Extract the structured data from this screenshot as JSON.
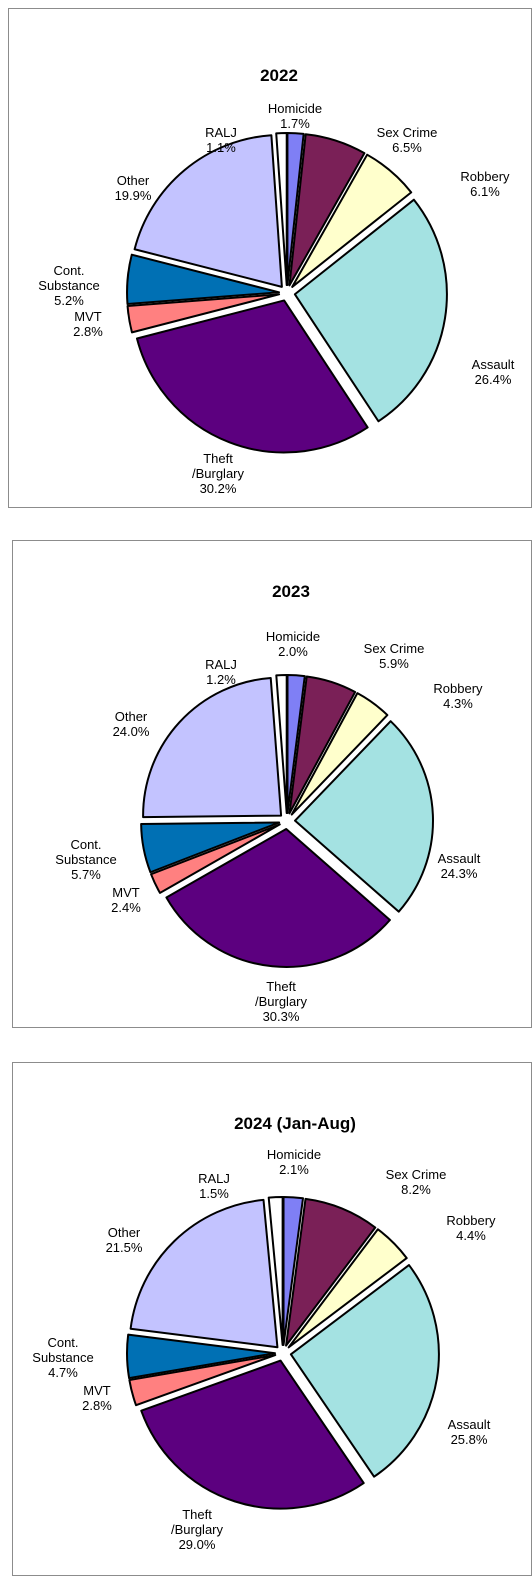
{
  "colors": {
    "Homicide": "#7f7ff5",
    "Sex Crime": "#7a2057",
    "Robbery": "#ffffcc",
    "Assault": "#a4e2e2",
    "Theft /Burglary": "#5c007f",
    "MVT": "#ff8080",
    "Cont. Substance": "#0070b4",
    "Other": "#c3c3ff",
    "RALJ": "#ffffff"
  },
  "chart_data": [
    {
      "type": "pie",
      "title": "2022",
      "slices": [
        {
          "name": "Homicide",
          "label": [
            "Homicide"
          ],
          "value": 1.7,
          "value_label": "1.7%"
        },
        {
          "name": "Sex Crime",
          "label": [
            "Sex Crime"
          ],
          "value": 6.5,
          "value_label": "6.5%"
        },
        {
          "name": "Robbery",
          "label": [
            "Robbery"
          ],
          "value": 6.1,
          "value_label": "6.1%"
        },
        {
          "name": "Assault",
          "label": [
            "Assault"
          ],
          "value": 26.4,
          "value_label": "26.4%"
        },
        {
          "name": "Theft /Burglary",
          "label": [
            "Theft",
            "/Burglary"
          ],
          "value": 30.2,
          "value_label": "30.2%"
        },
        {
          "name": "MVT",
          "label": [
            "MVT"
          ],
          "value": 2.8,
          "value_label": "2.8%"
        },
        {
          "name": "Cont. Substance",
          "label": [
            "Cont.",
            "Substance"
          ],
          "value": 5.2,
          "value_label": "5.2%"
        },
        {
          "name": "Other",
          "label": [
            "Other"
          ],
          "value": 19.9,
          "value_label": "19.9%"
        },
        {
          "name": "RALJ",
          "label": [
            "RALJ"
          ],
          "value": 1.1,
          "value_label": "1.1%"
        }
      ]
    },
    {
      "type": "pie",
      "title": "2023",
      "slices": [
        {
          "name": "Homicide",
          "label": [
            "Homicide"
          ],
          "value": 2.0,
          "value_label": "2.0%"
        },
        {
          "name": "Sex Crime",
          "label": [
            "Sex Crime"
          ],
          "value": 5.9,
          "value_label": "5.9%"
        },
        {
          "name": "Robbery",
          "label": [
            "Robbery"
          ],
          "value": 4.3,
          "value_label": "4.3%"
        },
        {
          "name": "Assault",
          "label": [
            "Assault"
          ],
          "value": 24.3,
          "value_label": "24.3%"
        },
        {
          "name": "Theft /Burglary",
          "label": [
            "Theft",
            "/Burglary"
          ],
          "value": 30.3,
          "value_label": "30.3%"
        },
        {
          "name": "MVT",
          "label": [
            "MVT"
          ],
          "value": 2.4,
          "value_label": "2.4%"
        },
        {
          "name": "Cont. Substance",
          "label": [
            "Cont.",
            "Substance"
          ],
          "value": 5.7,
          "value_label": "5.7%"
        },
        {
          "name": "Other",
          "label": [
            "Other"
          ],
          "value": 24.0,
          "value_label": "24.0%"
        },
        {
          "name": "RALJ",
          "label": [
            "RALJ"
          ],
          "value": 1.2,
          "value_label": "1.2%"
        }
      ]
    },
    {
      "type": "pie",
      "title": "2024 (Jan-Aug)",
      "slices": [
        {
          "name": "Homicide",
          "label": [
            "Homicide"
          ],
          "value": 2.1,
          "value_label": "2.1%"
        },
        {
          "name": "Sex Crime",
          "label": [
            "Sex Crime"
          ],
          "value": 8.2,
          "value_label": "8.2%"
        },
        {
          "name": "Robbery",
          "label": [
            "Robbery"
          ],
          "value": 4.4,
          "value_label": "4.4%"
        },
        {
          "name": "Assault",
          "label": [
            "Assault"
          ],
          "value": 25.8,
          "value_label": "25.8%"
        },
        {
          "name": "Theft /Burglary",
          "label": [
            "Theft",
            "/Burglary"
          ],
          "value": 29.0,
          "value_label": "29.0%"
        },
        {
          "name": "MVT",
          "label": [
            "MVT"
          ],
          "value": 2.8,
          "value_label": "2.8%"
        },
        {
          "name": "Cont. Substance",
          "label": [
            "Cont.",
            "Substance"
          ],
          "value": 4.7,
          "value_label": "4.7%"
        },
        {
          "name": "Other",
          "label": [
            "Other"
          ],
          "value": 21.5,
          "value_label": "21.5%"
        },
        {
          "name": "RALJ",
          "label": [
            "RALJ"
          ],
          "value": 1.5,
          "value_label": "1.5%"
        }
      ]
    }
  ]
}
